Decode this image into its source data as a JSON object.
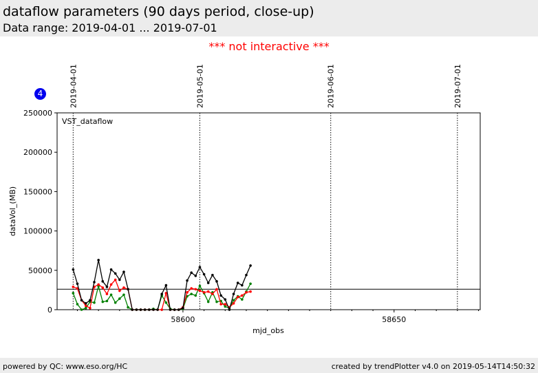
{
  "header": {
    "title": "dataflow parameters (90 days period, close-up)",
    "subtitle": "Data range: 2019-04-01 ... 2019-07-01"
  },
  "notice": "*** not interactive ***",
  "badge": "4",
  "footer": {
    "left": "powered by QC: www.eso.org/HC",
    "right": "created by trendPlotter v4.0 on 2019-05-14T14:50:32"
  },
  "colors": {
    "black_series": "#000000",
    "red_series": "#ff0000",
    "green_series": "#008000"
  },
  "chart_data": {
    "type": "line",
    "panel_label": "VST_dataflow",
    "xlabel": "mjd_obs",
    "ylabel": "dataVol_(MB)",
    "xlim": [
      58570.2,
      58670.4
    ],
    "ylim": [
      0,
      250000
    ],
    "x_ticks": [
      58600,
      58650
    ],
    "y_ticks": [
      0,
      50000,
      100000,
      150000,
      200000,
      250000
    ],
    "date_markers": [
      {
        "label": "2019-04-01",
        "mjd": 58574
      },
      {
        "label": "2019-05-01",
        "mjd": 58604
      },
      {
        "label": "2019-06-01",
        "mjd": 58635
      },
      {
        "label": "2019-07-01",
        "mjd": 58665
      }
    ],
    "reference_line": 26000,
    "x": [
      58574,
      58575,
      58576,
      58577,
      58578,
      58579,
      58580,
      58581,
      58582,
      58583,
      58584,
      58585,
      58586,
      58587,
      58588,
      58589,
      58590,
      58591,
      58592,
      58593,
      58594,
      58595,
      58596,
      58597,
      58598,
      58599,
      58600,
      58601,
      58602,
      58603,
      58604,
      58605,
      58606,
      58607,
      58608,
      58609,
      58610,
      58611,
      58612,
      58613,
      58614,
      58615,
      58616
    ],
    "series": [
      {
        "color": "#000000",
        "values": [
          51000,
          33000,
          12000,
          8000,
          12000,
          35000,
          63000,
          36000,
          29000,
          51000,
          46000,
          38000,
          48000,
          26000,
          0,
          0,
          0,
          0,
          0,
          0,
          0,
          20000,
          31000,
          0,
          0,
          0,
          2000,
          37000,
          47000,
          43000,
          54000,
          45000,
          34000,
          44000,
          36000,
          18000,
          13000,
          0,
          20000,
          34000,
          31000,
          44000,
          56000
        ]
      },
      {
        "color": "#ff0000",
        "values": [
          29000,
          27000,
          12000,
          5000,
          2000,
          29000,
          32000,
          28000,
          20000,
          32000,
          38000,
          24000,
          28000,
          26000,
          0,
          0,
          0,
          0,
          0,
          0,
          0,
          0,
          21000,
          0,
          0,
          0,
          3000,
          22000,
          27000,
          26000,
          24000,
          22000,
          23000,
          20000,
          26000,
          7000,
          7000,
          3000,
          8000,
          16000,
          18000,
          22000,
          23000
        ]
      },
      {
        "color": "#008000",
        "values": [
          21000,
          7000,
          0,
          2000,
          10000,
          9000,
          30000,
          10000,
          11000,
          19000,
          9000,
          14000,
          19000,
          3000,
          0,
          0,
          0,
          0,
          0,
          1000,
          0,
          18000,
          9000,
          1000,
          0,
          0,
          1000,
          17000,
          20000,
          18000,
          30000,
          21000,
          10000,
          22000,
          10000,
          11000,
          4000,
          2000,
          12000,
          17000,
          13000,
          23000,
          33000
        ]
      }
    ]
  }
}
